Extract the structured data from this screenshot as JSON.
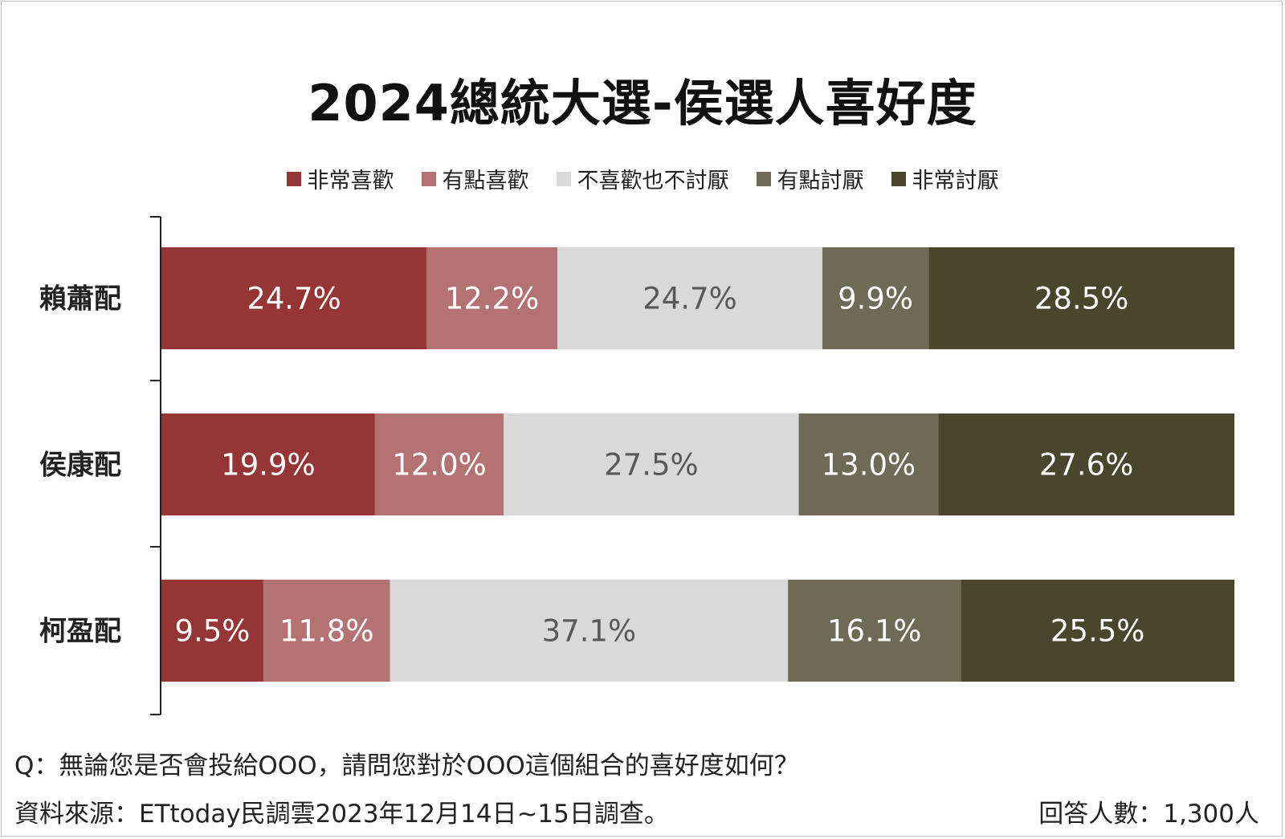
{
  "chart_data": {
    "type": "bar",
    "orientation": "horizontal",
    "stacked": true,
    "title": "2024總統大選-侯選人喜好度",
    "categories": [
      "賴蕭配",
      "侯康配",
      "柯盈配"
    ],
    "series": [
      {
        "name": "非常喜歡",
        "color": "#953535",
        "label_color": "#ffffff",
        "values": [
          24.7,
          19.9,
          9.5
        ]
      },
      {
        "name": "有點喜歡",
        "color": "#b57272",
        "label_color": "#ffffff",
        "values": [
          12.2,
          12.0,
          11.8
        ]
      },
      {
        "name": "不喜歡也不討厭",
        "color": "#d9d9d9",
        "label_color": "#595959",
        "values": [
          24.7,
          27.5,
          37.1
        ]
      },
      {
        "name": "有點討厭",
        "color": "#6e6a55",
        "label_color": "#ffffff",
        "values": [
          9.9,
          13.0,
          16.1
        ]
      },
      {
        "name": "非常討厭",
        "color": "#4a452d",
        "label_color": "#ffffff",
        "values": [
          28.5,
          27.6,
          25.5
        ]
      }
    ],
    "labels": [
      [
        "24.7%",
        "12.2%",
        "24.7%",
        "9.9%",
        "28.5%"
      ],
      [
        "19.9%",
        "12.0%",
        "27.5%",
        "13.0%",
        "27.6%"
      ],
      [
        "9.5%",
        "11.8%",
        "37.1%",
        "16.1%",
        "25.5%"
      ]
    ],
    "xlim": [
      0,
      100
    ],
    "grid": false,
    "legend_position": "top"
  },
  "footer": {
    "question": "Q：無論您是否會投給OOO，請問您對於OOO這個組合的喜好度如何？",
    "source": "資料來源：ETtoday民調雲2023年12月14日~15日調查。",
    "respondents": "回答人數：1,300人"
  }
}
